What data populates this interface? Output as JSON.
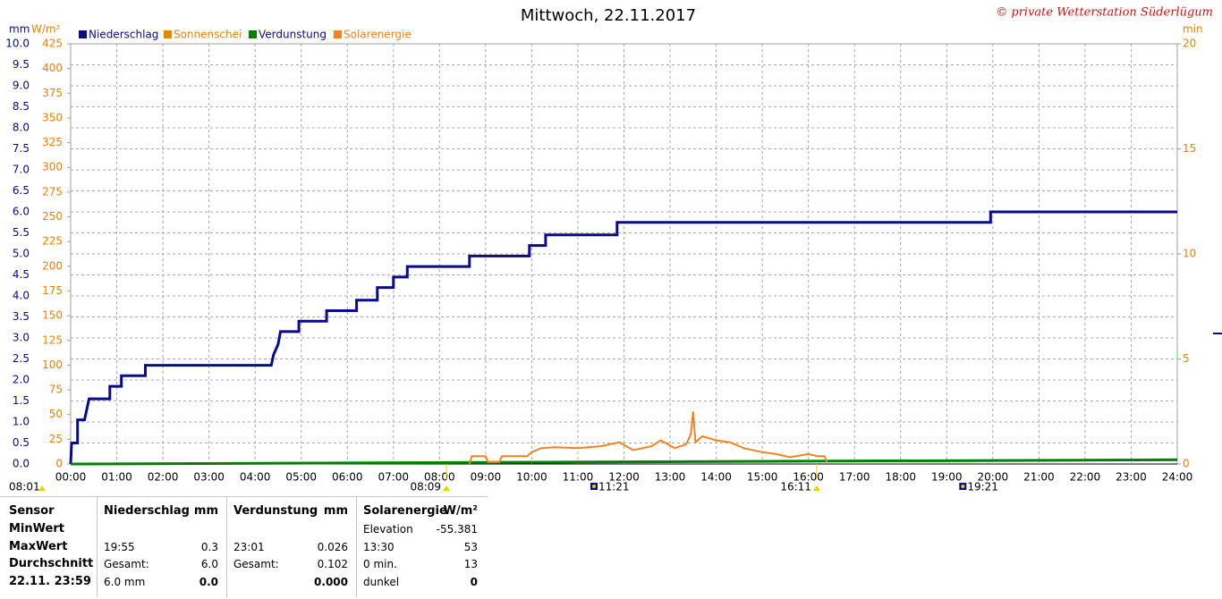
{
  "chart_data": {
    "type": "line",
    "title": "Mittwoch, 22.11.2017",
    "copyright": "© private Wetterstation Süderlügum",
    "y_label": "mm",
    "y2_label": "W/m²",
    "y3_label": "min",
    "xlim": [
      0,
      24
    ],
    "xticks": [
      {
        "value": 0,
        "label": "00:00"
      },
      {
        "value": 1,
        "label": "01:00"
      },
      {
        "value": 2,
        "label": "02:00"
      },
      {
        "value": 3,
        "label": "03:00"
      },
      {
        "value": 4,
        "label": "04:00"
      },
      {
        "value": 5,
        "label": "05:00"
      },
      {
        "value": 6,
        "label": "06:00"
      },
      {
        "value": 7,
        "label": "07:00"
      },
      {
        "value": 8,
        "label": "08:00"
      },
      {
        "value": 9,
        "label": "09:00"
      },
      {
        "value": 10,
        "label": "10:00"
      },
      {
        "value": 11,
        "label": "11:00"
      },
      {
        "value": 12,
        "label": "12:00"
      },
      {
        "value": 13,
        "label": "13:00"
      },
      {
        "value": 14,
        "label": "14:00"
      },
      {
        "value": 15,
        "label": "15:00"
      },
      {
        "value": 16,
        "label": "16:00"
      },
      {
        "value": 17,
        "label": "17:00"
      },
      {
        "value": 18,
        "label": "18:00"
      },
      {
        "value": 19,
        "label": "19:00"
      },
      {
        "value": 20,
        "label": "20:00"
      },
      {
        "value": 21,
        "label": "21:00"
      },
      {
        "value": 22,
        "label": "22:00"
      },
      {
        "value": 23,
        "label": "23:00"
      },
      {
        "value": 24,
        "label": "24:00"
      }
    ],
    "ylim": [
      0,
      10
    ],
    "yticks": [
      {
        "value": 0,
        "label": "0.0"
      },
      0.5,
      {
        "value": 1,
        "label": "1.0"
      },
      1.5,
      {
        "value": 2,
        "label": "2.0"
      },
      2.5,
      {
        "value": 3,
        "label": "3.0"
      },
      3.5,
      {
        "value": 4,
        "label": "4.0"
      },
      4.5,
      {
        "value": 5,
        "label": "5.0"
      },
      5.5,
      {
        "value": 6,
        "label": "6.0"
      },
      6.5,
      {
        "value": 7,
        "label": "7.0"
      },
      7.5,
      {
        "value": 8,
        "label": "8.0"
      },
      8.5,
      {
        "value": 9,
        "label": "9.0"
      },
      9.5,
      {
        "value": 10,
        "label": "10.0"
      }
    ],
    "y2lim": [
      0,
      425
    ],
    "y2ticks": [
      0,
      25,
      50,
      75,
      100,
      125,
      150,
      175,
      200,
      225,
      250,
      275,
      300,
      325,
      350,
      375,
      400,
      425
    ],
    "y3lim": [
      0,
      20
    ],
    "y3ticks": [
      0,
      5,
      10,
      15,
      20
    ],
    "grid": true,
    "series": [
      {
        "name": "Niederschlag",
        "color": "#0a0a8c",
        "axis": "y",
        "x": [
          0,
          0.02,
          0.15,
          0.15,
          0.3,
          0.35,
          0.4,
          0.85,
          0.85,
          1.1,
          1.1,
          1.62,
          1.62,
          4.35,
          4.4,
          4.5,
          4.55,
          4.95,
          4.95,
          5.55,
          5.55,
          6.2,
          6.2,
          6.65,
          6.65,
          7.0,
          7.0,
          7.3,
          7.3,
          8.65,
          8.65,
          9.95,
          9.95,
          10.3,
          10.3,
          11.85,
          11.85,
          19.95,
          19.95,
          24
        ],
        "values": [
          0,
          0.5,
          0.5,
          1.05,
          1.05,
          1.3,
          1.55,
          1.55,
          1.85,
          1.85,
          2.1,
          2.1,
          2.35,
          2.35,
          2.6,
          2.85,
          3.15,
          3.15,
          3.4,
          3.4,
          3.65,
          3.65,
          3.9,
          3.9,
          4.2,
          4.2,
          4.45,
          4.45,
          4.7,
          4.7,
          4.95,
          4.95,
          5.2,
          5.2,
          5.45,
          5.45,
          5.75,
          5.75,
          6.0,
          6.0
        ]
      },
      {
        "name": "Sonnenschei",
        "color": "#f08000",
        "axis": "y3",
        "x": [],
        "values": []
      },
      {
        "name": "Verdunstung",
        "color": "#008000",
        "axis": "y",
        "x": [
          0,
          24
        ],
        "values": [
          0,
          0.1
        ]
      },
      {
        "name": "Solarenergie",
        "color": "#f5821f",
        "axis": "y2",
        "x": [
          8.65,
          8.7,
          9.0,
          9.05,
          9.3,
          9.35,
          9.9,
          10.0,
          10.2,
          10.5,
          11.0,
          11.5,
          11.9,
          12.2,
          12.6,
          12.8,
          13.1,
          13.35,
          13.45,
          13.5,
          13.55,
          13.7,
          14.0,
          14.3,
          14.6,
          15.0,
          15.3,
          15.6,
          16.0,
          16.2,
          16.35,
          16.4
        ],
        "values": [
          0,
          8,
          8,
          2,
          2,
          8,
          8,
          12,
          16,
          17,
          16,
          18,
          22,
          14,
          18,
          24,
          16,
          20,
          30,
          53,
          22,
          28,
          24,
          22,
          16,
          12,
          10,
          7,
          10,
          8,
          8,
          2
        ]
      }
    ],
    "left_marker": "08:01",
    "annotations": [
      {
        "label": "08:09",
        "x": 8.15,
        "kind": "sun"
      },
      {
        "label": "11:21",
        "x": 11.35,
        "kind": "moon"
      },
      {
        "label": "16:11",
        "x": 16.18,
        "kind": "sun"
      },
      {
        "label": "19:21",
        "x": 19.35,
        "kind": "moon"
      }
    ]
  },
  "table": {
    "header": [
      {
        "left": "Sensor"
      },
      {
        "left": "Niederschlag",
        "right": "mm"
      },
      {
        "left": "Verdunstung",
        "right": "mm"
      },
      {
        "left": "Solarenergie",
        "right": "W/m²"
      }
    ],
    "rows": [
      [
        {
          "left": "MinWert"
        },
        {},
        {},
        {
          "left": "Elevation",
          "right": "-55.381"
        }
      ],
      [
        {
          "left": "MaxWert"
        },
        {
          "left": "19:55",
          "right": "0.3"
        },
        {
          "left": "23:01",
          "right": "0.026"
        },
        {
          "left": "13:30",
          "right": "53"
        }
      ],
      [
        {
          "left": "Durchschnitt"
        },
        {
          "left": "Gesamt:",
          "right": "6.0"
        },
        {
          "left": "Gesamt:",
          "right": "0.102"
        },
        {
          "left": "0 min.",
          "right": "13"
        }
      ],
      [
        {
          "left": "22.11. 23:59"
        },
        {
          "left": "6.0 mm",
          "right": "0.0"
        },
        {
          "right": "0.000"
        },
        {
          "left": "dunkel",
          "right": "0"
        }
      ]
    ]
  }
}
